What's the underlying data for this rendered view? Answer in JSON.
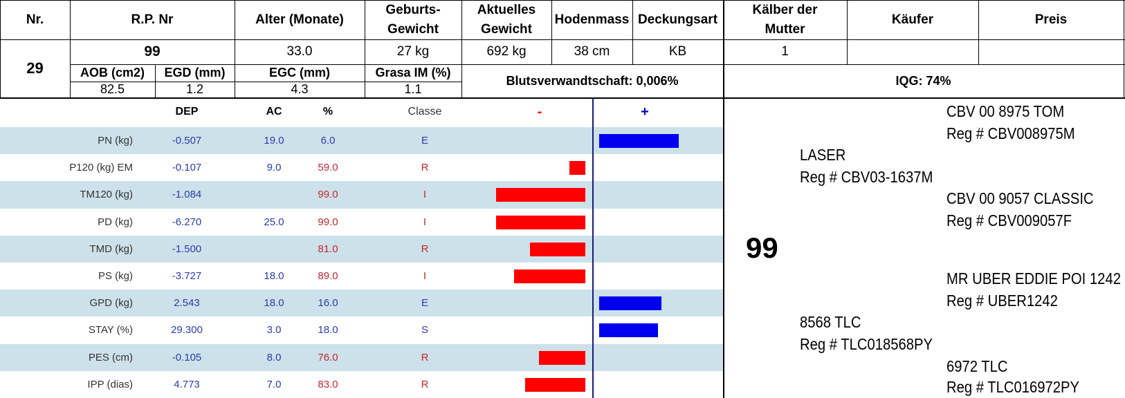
{
  "header": {
    "nr": "Nr.",
    "rp_nr": "R.P. Nr",
    "alter": "Alter (Monate)",
    "geburts_1": "Geburts-",
    "geburts_2": "Gewicht",
    "aktuelles_1": "Aktuelles",
    "aktuelles_2": "Gewicht",
    "hodenmass": "Hodenmass",
    "deckungsart": "Deckungsart",
    "kaelber_1": "Kälber der",
    "kaelber_2": "Mutter",
    "kaeufer": "Käufer",
    "preis": "Preis"
  },
  "animal": {
    "nr": "29",
    "rp_nr": "99",
    "alter": "33.0",
    "geburtsgewicht": "27 kg",
    "aktuelles_gewicht": "692 kg",
    "hodenmass": "38 cm",
    "deckungsart": "KB",
    "kaelber_der_mutter": "1",
    "kaeufer": "",
    "preis": ""
  },
  "sub": {
    "aob_label": "AOB (cm2)",
    "egd_label": "EGD (mm)",
    "egc_label": "EGC (mm)",
    "grasa_label": "Grasa IM (%)",
    "aob": "82.5",
    "egd": "1.2",
    "egc": "4.3",
    "grasa": "1.1",
    "blutsverwandtschaft": "Blutsverwandtschaft: 0,006%",
    "iqg": "IQG: 74%"
  },
  "dep_table": {
    "headers": {
      "dep": "DEP",
      "ac": "AC",
      "pct": "%",
      "classe": "Classe",
      "minus": "-",
      "plus": "+"
    },
    "rows": [
      {
        "label": "PN (kg)",
        "dep": "-0.507",
        "ac": "19.0",
        "pct": "6.0",
        "classe": "E",
        "bar": 0.5,
        "color": "blue"
      },
      {
        "label": "P120 (kg) EM",
        "dep": "-0.107",
        "ac": "9.0",
        "pct": "59.0",
        "classe": "R",
        "bar": -0.1,
        "color": "red"
      },
      {
        "label": "TM120 (kg)",
        "dep": "-1.084",
        "ac": "",
        "pct": "99.0",
        "classe": "I",
        "bar": -0.56,
        "color": "red"
      },
      {
        "label": "PD (kg)",
        "dep": "-6.270",
        "ac": "25.0",
        "pct": "99.0",
        "classe": "I",
        "bar": -0.56,
        "color": "red"
      },
      {
        "label": "TMD (kg)",
        "dep": "-1.500",
        "ac": "",
        "pct": "81.0",
        "classe": "R",
        "bar": -0.35,
        "color": "red"
      },
      {
        "label": "PS (kg)",
        "dep": "-3.727",
        "ac": "18.0",
        "pct": "89.0",
        "classe": "I",
        "bar": -0.45,
        "color": "red"
      },
      {
        "label": "GPD (kg)",
        "dep": "2.543",
        "ac": "18.0",
        "pct": "16.0",
        "classe": "E",
        "bar": 0.39,
        "color": "blue"
      },
      {
        "label": "STAY (%)",
        "dep": "29.300",
        "ac": "3.0",
        "pct": "18.0",
        "classe": "S",
        "bar": 0.37,
        "color": "blue"
      },
      {
        "label": "PES (cm)",
        "dep": "-0.105",
        "ac": "8.0",
        "pct": "76.0",
        "classe": "R",
        "bar": -0.29,
        "color": "red"
      },
      {
        "label": "IPP (dias)",
        "dep": "4.773",
        "ac": "7.0",
        "pct": "83.0",
        "classe": "R",
        "bar": -0.38,
        "color": "red"
      }
    ]
  },
  "pedigree": {
    "animal": "99",
    "sire": {
      "name": "LASER",
      "reg": "Reg # CBV03-1637M"
    },
    "sire_sire": {
      "name": "CBV 00 8975 TOM",
      "reg": "Reg # CBV008975M"
    },
    "sire_dam": {
      "name": "CBV 00 9057 CLASSIC",
      "reg": "Reg # CBV009057F"
    },
    "dam": {
      "name": "8568 TLC",
      "reg": "Reg # TLC018568PY"
    },
    "dam_sire": {
      "name": "MR UBER EDDIE POI 1242",
      "reg": "Reg # UBER1242"
    },
    "dam_dam": {
      "name": "6972 TLC",
      "reg": "Reg # TLC016972PY"
    }
  },
  "colors": {
    "band": "#cde1ea",
    "neg_bar": "#ff0000",
    "pos_bar": "#0000ee",
    "blue_text": "#2a3ca8",
    "red_text": "#c0282c"
  }
}
